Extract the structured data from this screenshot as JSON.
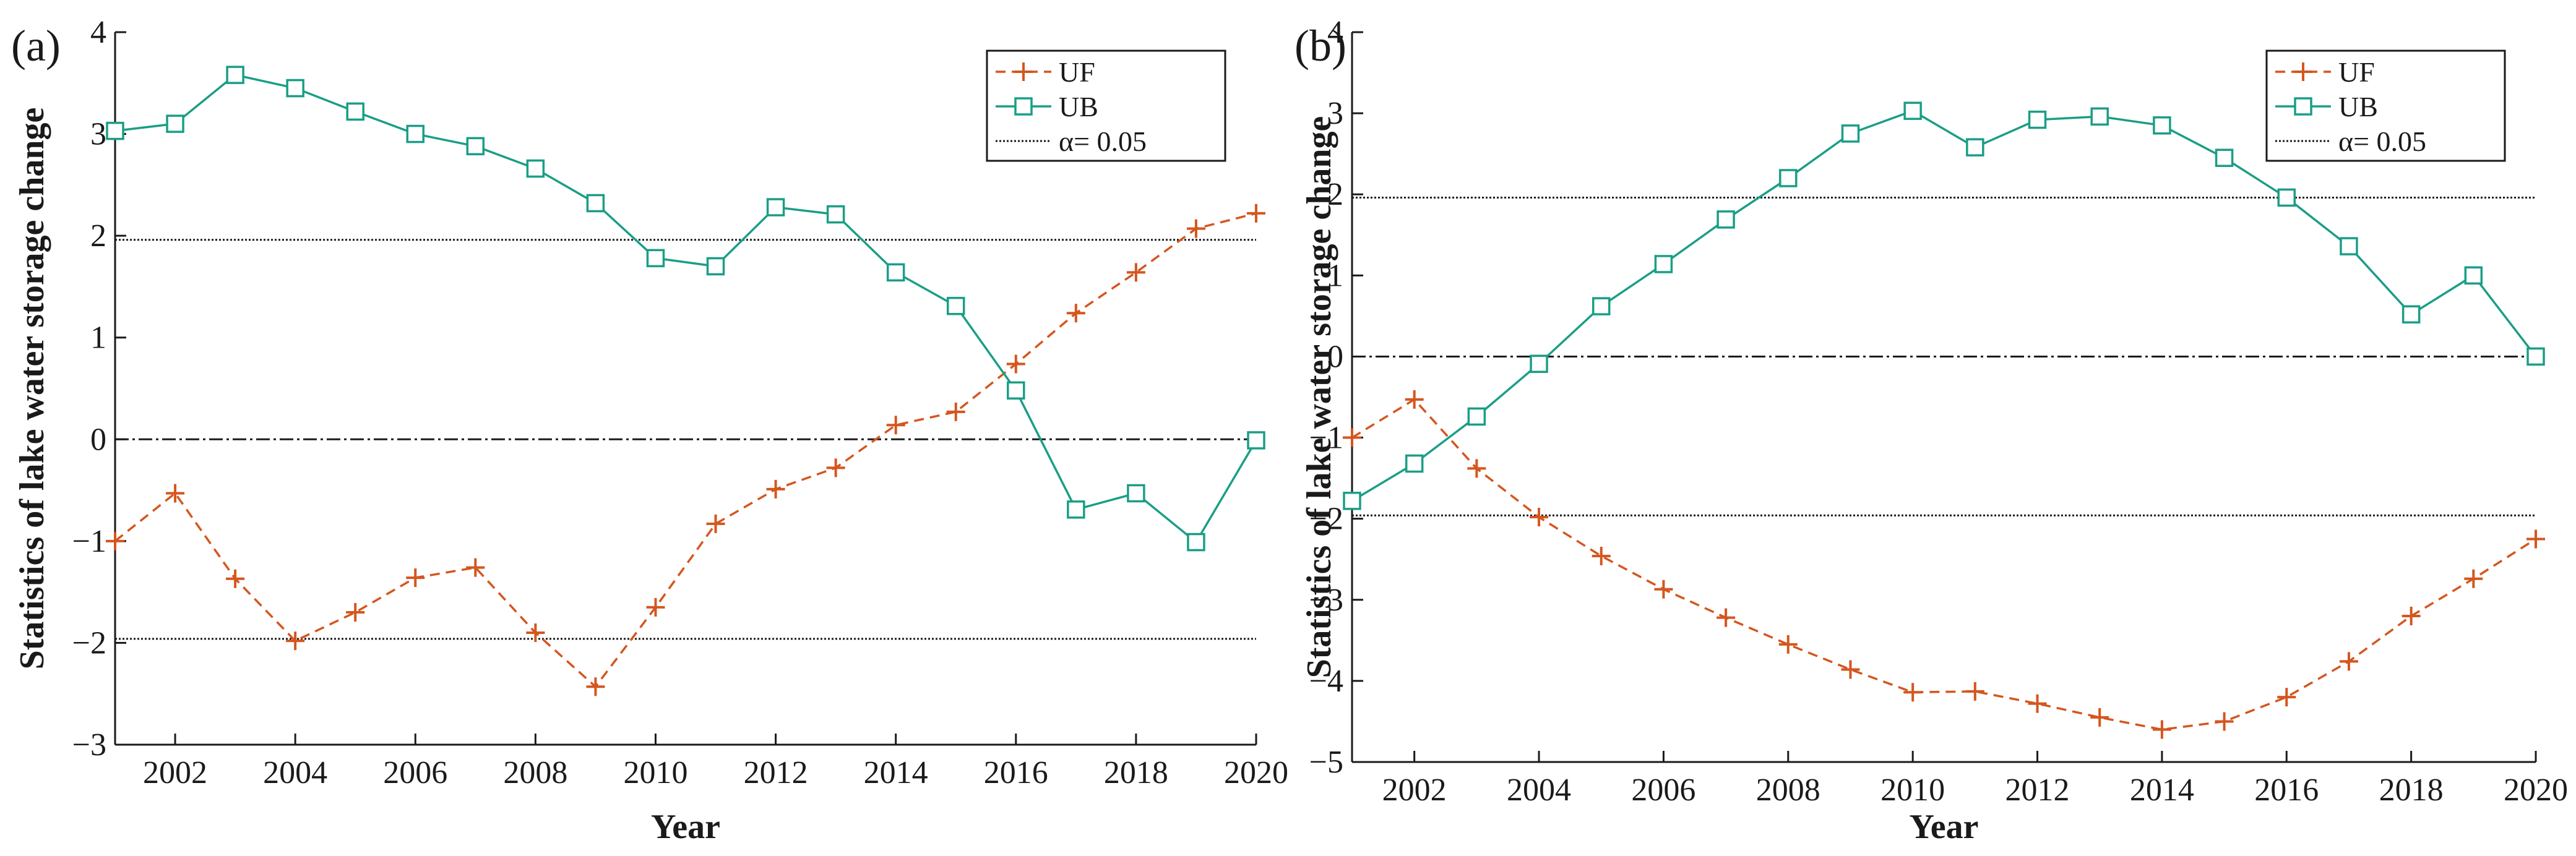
{
  "colors": {
    "uf": "#d4561e",
    "ub": "#1a9e86",
    "axis": "#1a1a1a"
  },
  "chart_data": [
    {
      "type": "line",
      "panel_label": "(a)",
      "xlabel": "Year",
      "ylabel": "Statistics of lake water storage change",
      "xlim": [
        2001,
        2020
      ],
      "ylim": [
        -3,
        4
      ],
      "xticks": [
        2002,
        2004,
        2006,
        2008,
        2010,
        2012,
        2014,
        2016,
        2018,
        2020
      ],
      "xtick_labels": [
        "2002",
        "2004",
        "2006",
        "2008",
        "2010",
        "2012",
        "2014",
        "2016",
        "2018",
        "2020"
      ],
      "yticks": [
        -3,
        -2,
        -1,
        0,
        1,
        2,
        3,
        4
      ],
      "ytick_labels": [
        "−3",
        "−2",
        "−1",
        "0",
        "1",
        "2",
        "3",
        "4"
      ],
      "x": [
        2001,
        2002,
        2003,
        2004,
        2005,
        2006,
        2007,
        2008,
        2009,
        2010,
        2011,
        2012,
        2013,
        2014,
        2015,
        2016,
        2017,
        2018,
        2019,
        2020
      ],
      "series": [
        {
          "name": "UF",
          "marker": "plus",
          "style": "dashed",
          "values": [
            -1.0,
            -0.53,
            -1.37,
            -1.98,
            -1.7,
            -1.36,
            -1.26,
            -1.9,
            -2.43,
            -1.65,
            -0.83,
            -0.49,
            -0.28,
            0.14,
            0.27,
            0.74,
            1.24,
            1.64,
            2.07,
            2.22
          ]
        },
        {
          "name": "UB",
          "marker": "square",
          "style": "solid",
          "values": [
            3.03,
            3.1,
            3.58,
            3.45,
            3.22,
            3.0,
            2.88,
            2.66,
            2.32,
            1.78,
            1.7,
            2.28,
            2.21,
            1.64,
            1.31,
            0.48,
            -0.69,
            -0.53,
            -1.01,
            -0.01
          ]
        }
      ],
      "reference_lines": [
        {
          "name": "α= 0.05",
          "style": "dotted",
          "values": [
            1.96,
            -1.96
          ]
        },
        {
          "name": "zero",
          "style": "dashdot",
          "values": [
            0
          ]
        }
      ],
      "legend": {
        "position": "top-right",
        "entries": [
          "UF",
          "UB",
          "α= 0.05"
        ]
      }
    },
    {
      "type": "line",
      "panel_label": "(b)",
      "xlabel": "Year",
      "ylabel": "Statistics of lake water storage change",
      "xlim": [
        2001,
        2020
      ],
      "ylim": [
        -5,
        4
      ],
      "xticks": [
        2002,
        2004,
        2006,
        2008,
        2010,
        2012,
        2014,
        2016,
        2018,
        2020
      ],
      "xtick_labels": [
        "2002",
        "2004",
        "2006",
        "2008",
        "2010",
        "2012",
        "2014",
        "2016",
        "2018",
        "2020"
      ],
      "yticks": [
        -5,
        -4,
        -3,
        -2,
        -1,
        0,
        1,
        2,
        3,
        4
      ],
      "ytick_labels": [
        "−5",
        "−4",
        "−3",
        "−2",
        "−1",
        "0",
        "1",
        "2",
        "3",
        "4"
      ],
      "x": [
        2001,
        2002,
        2003,
        2004,
        2005,
        2006,
        2007,
        2008,
        2009,
        2010,
        2011,
        2012,
        2013,
        2014,
        2015,
        2016,
        2017,
        2018,
        2019,
        2020
      ],
      "series": [
        {
          "name": "UF",
          "marker": "plus",
          "style": "dashed",
          "values": [
            -1.0,
            -0.53,
            -1.38,
            -1.98,
            -2.46,
            -2.87,
            -3.22,
            -3.55,
            -3.86,
            -4.14,
            -4.13,
            -4.28,
            -4.45,
            -4.6,
            -4.5,
            -4.2,
            -3.76,
            -3.2,
            -2.74,
            -2.25
          ]
        },
        {
          "name": "UB",
          "marker": "square",
          "style": "solid",
          "values": [
            -1.78,
            -1.32,
            -0.74,
            -0.09,
            0.62,
            1.14,
            1.69,
            2.2,
            2.75,
            3.03,
            2.58,
            2.92,
            2.96,
            2.85,
            2.45,
            1.96,
            1.36,
            0.52,
            1.0,
            0.0
          ]
        }
      ],
      "reference_lines": [
        {
          "name": "α= 0.05",
          "style": "dotted",
          "values": [
            1.96,
            -1.96
          ]
        },
        {
          "name": "zero",
          "style": "dashdot",
          "values": [
            0
          ]
        }
      ],
      "legend": {
        "position": "top-right",
        "entries": [
          "UF",
          "UB",
          "α= 0.05"
        ]
      }
    }
  ]
}
